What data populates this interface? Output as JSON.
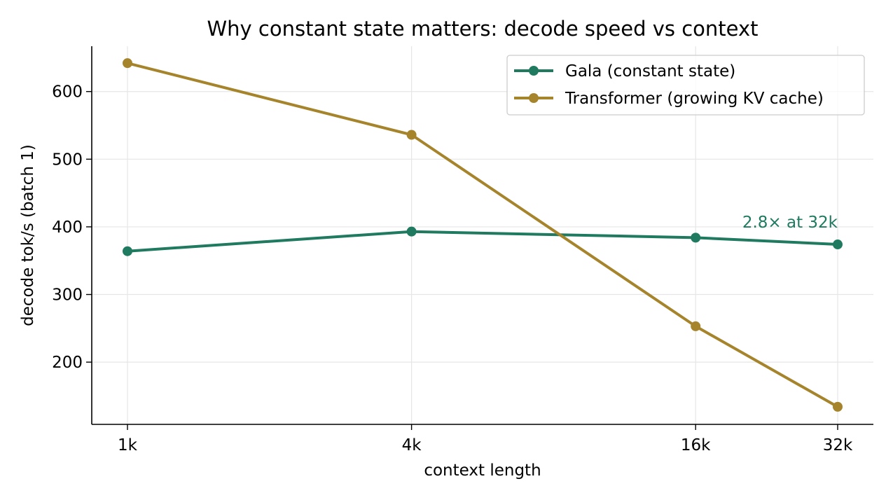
{
  "chart_data": {
    "type": "line",
    "title": "Why constant state matters: decode speed vs context",
    "xlabel": "context length",
    "ylabel": "decode tok/s (batch 1)",
    "x_scale": "log2",
    "x": [
      1,
      4,
      16,
      32
    ],
    "x_tick_labels": [
      "1k",
      "4k",
      "16k",
      "32k"
    ],
    "y_ticks": [
      200,
      300,
      400,
      500,
      600
    ],
    "ylim": [
      108,
      667
    ],
    "grid": true,
    "legend_position": "top-right",
    "series": [
      {
        "name": "Gala (constant state)",
        "color": "#1f7a5f",
        "values": [
          364,
          393,
          384,
          374
        ]
      },
      {
        "name": "Transformer (growing KV cache)",
        "color": "#a5842b",
        "values": [
          642,
          536,
          253,
          134
        ]
      }
    ],
    "annotations": [
      {
        "text": "2.8× at 32k",
        "x": 32,
        "y": 400,
        "color": "#1f7a5f"
      }
    ]
  }
}
